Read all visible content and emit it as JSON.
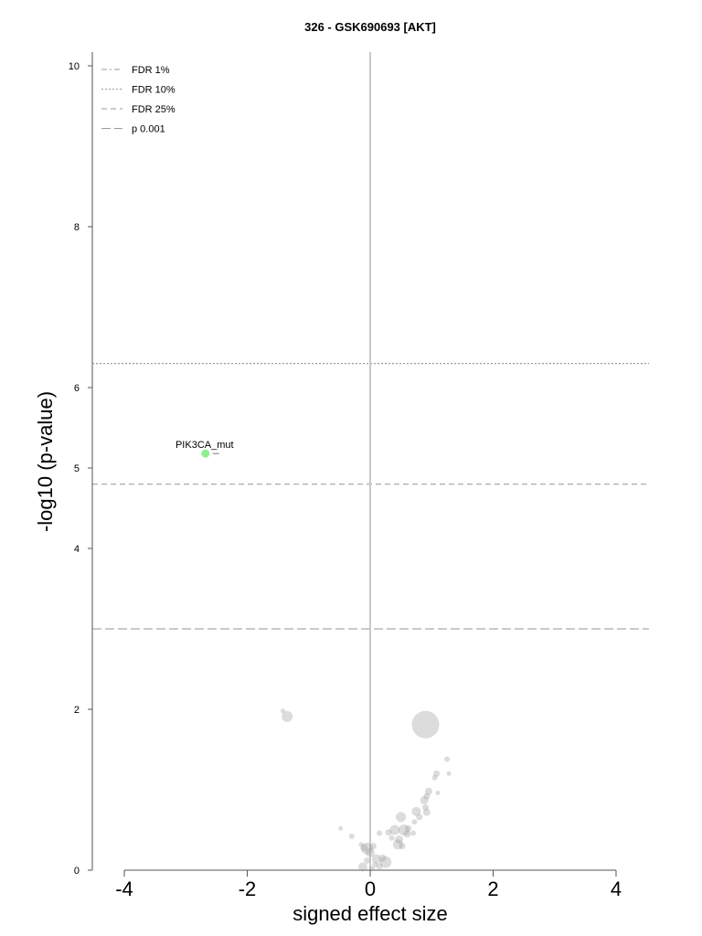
{
  "chart_data": {
    "type": "scatter",
    "title": "326 - GSK690693 [AKT]",
    "xlabel": "signed effect size",
    "ylabel": "-log10 (p-value)",
    "xlim": [
      -4.5,
      4.5
    ],
    "ylim": [
      0,
      10.2
    ],
    "x_ticks": [
      "-4",
      "-2",
      "0",
      "2",
      "4"
    ],
    "y_ticks": [
      "0",
      "2",
      "4",
      "5",
      "6",
      "8",
      "10"
    ],
    "grid": false,
    "legend_position": "top-left",
    "legend": [
      {
        "label": "FDR 1%",
        "style": "dash-dot"
      },
      {
        "label": "FDR 10%",
        "style": "dotted"
      },
      {
        "label": "FDR 25%",
        "style": "dashed"
      },
      {
        "label": "p 0.001",
        "style": "long-dashed"
      }
    ],
    "thresholds": [
      {
        "name": "FDR 10%",
        "y": 6.3,
        "style": "dotted"
      },
      {
        "name": "FDR 25%",
        "y": 4.8,
        "style": "dashed"
      },
      {
        "name": "p 0.001",
        "y": 3.0,
        "style": "long-dashed"
      }
    ],
    "highlight": {
      "label": "PIK3CA_mut",
      "x": -2.68,
      "y": 5.18,
      "color": "#90ee90"
    },
    "points": [
      {
        "x": 0.9,
        "y": 1.81,
        "size": 3.0
      },
      {
        "x": -1.35,
        "y": 1.91,
        "size": 1.2
      },
      {
        "x": -1.42,
        "y": 1.98,
        "size": 0.5
      },
      {
        "x": 1.25,
        "y": 1.38,
        "size": 0.6
      },
      {
        "x": 1.28,
        "y": 1.2,
        "size": 0.5
      },
      {
        "x": 1.08,
        "y": 1.2,
        "size": 0.7
      },
      {
        "x": 1.05,
        "y": 1.15,
        "size": 0.6
      },
      {
        "x": 0.95,
        "y": 0.98,
        "size": 0.8
      },
      {
        "x": 1.1,
        "y": 0.96,
        "size": 0.5
      },
      {
        "x": 0.92,
        "y": 0.92,
        "size": 0.7
      },
      {
        "x": 0.88,
        "y": 0.87,
        "size": 0.9
      },
      {
        "x": 0.9,
        "y": 0.78,
        "size": 0.7
      },
      {
        "x": 0.92,
        "y": 0.72,
        "size": 0.8
      },
      {
        "x": 0.75,
        "y": 0.73,
        "size": 1.0
      },
      {
        "x": 0.8,
        "y": 0.66,
        "size": 0.7
      },
      {
        "x": 0.5,
        "y": 0.66,
        "size": 1.1
      },
      {
        "x": 0.72,
        "y": 0.6,
        "size": 0.6
      },
      {
        "x": 0.62,
        "y": 0.52,
        "size": 0.7
      },
      {
        "x": 0.55,
        "y": 0.5,
        "size": 1.2
      },
      {
        "x": 0.4,
        "y": 0.5,
        "size": 1.1
      },
      {
        "x": 0.7,
        "y": 0.46,
        "size": 0.6
      },
      {
        "x": 0.6,
        "y": 0.45,
        "size": 0.8
      },
      {
        "x": 0.3,
        "y": 0.47,
        "size": 0.7
      },
      {
        "x": 0.35,
        "y": 0.4,
        "size": 0.6
      },
      {
        "x": 0.47,
        "y": 0.38,
        "size": 0.9
      },
      {
        "x": 0.45,
        "y": 0.32,
        "size": 1.1
      },
      {
        "x": 0.52,
        "y": 0.3,
        "size": 0.7
      },
      {
        "x": 0.15,
        "y": 0.46,
        "size": 0.6
      },
      {
        "x": -0.3,
        "y": 0.42,
        "size": 0.6
      },
      {
        "x": -0.48,
        "y": 0.52,
        "size": 0.5
      },
      {
        "x": 0.05,
        "y": 0.3,
        "size": 0.7
      },
      {
        "x": -0.05,
        "y": 0.27,
        "size": 1.3
      },
      {
        "x": -0.1,
        "y": 0.28,
        "size": 0.8
      },
      {
        "x": 0.0,
        "y": 0.22,
        "size": 1.0
      },
      {
        "x": -0.15,
        "y": 0.32,
        "size": 0.5
      },
      {
        "x": 0.2,
        "y": 0.15,
        "size": 0.8
      },
      {
        "x": 0.1,
        "y": 0.14,
        "size": 1.0
      },
      {
        "x": 0.25,
        "y": 0.1,
        "size": 1.3
      },
      {
        "x": -0.05,
        "y": 0.12,
        "size": 0.7
      },
      {
        "x": 0.08,
        "y": 0.07,
        "size": 0.6
      },
      {
        "x": -0.12,
        "y": 0.04,
        "size": 1.0
      },
      {
        "x": 0.03,
        "y": 0.02,
        "size": 0.6
      },
      {
        "x": 0.15,
        "y": 0.05,
        "size": 0.7
      }
    ]
  }
}
